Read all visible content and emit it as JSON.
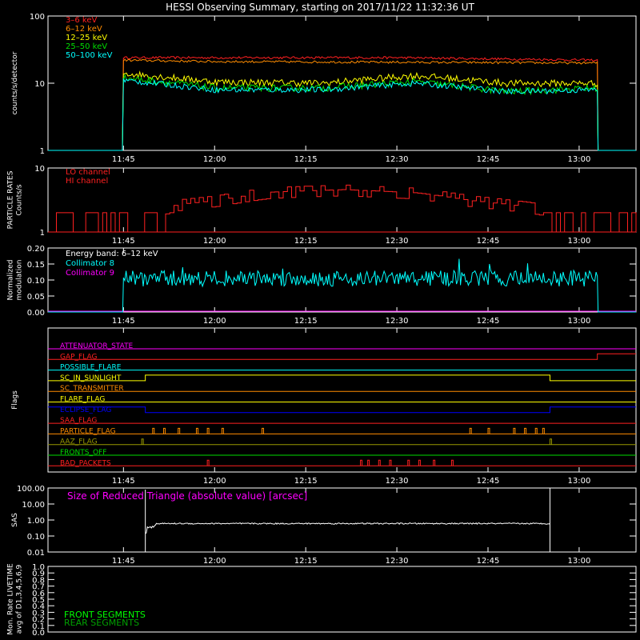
{
  "title": "HESSI Observing Summary, starting on 2017/11/22 11:32:36 UT",
  "colors": {
    "red": "#ff2020",
    "orange": "#ff8c00",
    "yellow": "#ffff00",
    "green": "#00dd00",
    "cyan": "#00ffff",
    "magenta": "#ff00ff",
    "blue": "#0000ff",
    "olive": "#999900",
    "white": "#ffffff",
    "dimgreen": "#00a000"
  },
  "chart_data": [
    {
      "id": "counts",
      "type": "line",
      "ylabel": "counts/s/detector",
      "yscale": "log",
      "ylim": [
        1,
        100
      ],
      "y_ticks": [
        {
          "v": 1,
          "l": "1"
        },
        {
          "v": 10,
          "l": "10"
        },
        {
          "v": 100,
          "l": "100"
        }
      ],
      "x_ticks": [
        "11:45",
        "12:00",
        "12:15",
        "12:30",
        "12:45",
        "13:00"
      ],
      "legend": [
        "3–6 keV",
        "6–12 keV",
        "12–25 keV",
        "25–50 keV",
        "50–100 keV"
      ],
      "series": [
        {
          "name": "3–6 keV",
          "color": "#ff2020",
          "base": [
            [
              11.75,
              24
            ],
            [
              12.5,
              24
            ],
            [
              13.05,
              22
            ]
          ],
          "noise": 0.04
        },
        {
          "name": "6–12 keV",
          "color": "#ff8c00",
          "base": [
            [
              11.75,
              22
            ],
            [
              12.0,
              21
            ],
            [
              13.05,
              20
            ]
          ],
          "noise": 0.04
        },
        {
          "name": "12–25 keV",
          "color": "#ffff00",
          "base": [
            [
              11.75,
              14
            ],
            [
              12.0,
              10.5
            ],
            [
              12.3,
              10
            ],
            [
              12.55,
              13
            ],
            [
              12.8,
              10
            ],
            [
              13.05,
              10
            ]
          ],
          "noise": 0.12
        },
        {
          "name": "25–50 keV",
          "color": "#00dd00",
          "base": [
            [
              11.75,
              12
            ],
            [
              12.0,
              8.5
            ],
            [
              12.3,
              8.5
            ],
            [
              12.55,
              10.5
            ],
            [
              12.8,
              7.5
            ],
            [
              13.05,
              8.5
            ]
          ],
          "noise": 0.12
        },
        {
          "name": "50–100 keV",
          "color": "#00ffff",
          "base": [
            [
              11.75,
              11
            ],
            [
              12.0,
              8
            ],
            [
              12.3,
              8
            ],
            [
              12.55,
              10
            ],
            [
              12.8,
              7.5
            ],
            [
              13.05,
              8
            ]
          ],
          "noise": 0.1
        }
      ]
    },
    {
      "id": "particles",
      "type": "line",
      "ylabel": "PARTICLE RATES Counts/s",
      "yscale": "log",
      "ylim": [
        1,
        10
      ],
      "y_ticks": [
        {
          "v": 1,
          "l": "1"
        },
        {
          "v": 10,
          "l": "10"
        }
      ],
      "x_ticks": [
        "11:45",
        "12:00",
        "12:15",
        "12:30",
        "12:45",
        "13:00"
      ],
      "legend": [
        "LO channel",
        "HI channel"
      ],
      "series": [
        {
          "name": "LO channel",
          "color": "#ff2020",
          "levels": [
            [
              11.56,
              1.0
            ],
            [
              11.58,
              2
            ],
            [
              11.62,
              1.0
            ],
            [
              11.7,
              2
            ],
            [
              11.73,
              1.0
            ],
            [
              11.82,
              2
            ],
            [
              11.9,
              2.7
            ],
            [
              12.0,
              3.1
            ],
            [
              12.15,
              4.2
            ],
            [
              12.35,
              4.6
            ],
            [
              12.55,
              4.1
            ],
            [
              12.7,
              3.1
            ],
            [
              12.85,
              2.5
            ],
            [
              13.0,
              1.8
            ],
            [
              13.05,
              2
            ],
            [
              13.15,
              1.6
            ]
          ]
        },
        {
          "name": "HI channel",
          "color": "#ff2020",
          "levels": [
            [
              11.56,
              1.0
            ],
            [
              13.15,
              1.0
            ]
          ]
        }
      ]
    },
    {
      "id": "modulation",
      "type": "line",
      "ylabel": "Normalized modulation",
      "ylim": [
        0,
        0.2
      ],
      "y_ticks": [
        {
          "v": 0,
          "l": "0.00"
        },
        {
          "v": 0.05,
          "l": "0.05"
        },
        {
          "v": 0.1,
          "l": "0.10"
        },
        {
          "v": 0.15,
          "l": "0.15"
        },
        {
          "v": 0.2,
          "l": "0.20"
        }
      ],
      "x_ticks": [
        "11:45",
        "12:00",
        "12:15",
        "12:30",
        "12:45",
        "13:00"
      ],
      "legend": [
        "Energy band: 6–12 keV",
        "Collimator 8",
        "Collimator 9"
      ],
      "series": [
        {
          "name": "Collimator 8",
          "color": "#00ffff",
          "mean": 0.105,
          "span": [
            11.75,
            13.05
          ]
        },
        {
          "name": "Collimator 9",
          "color": "#ff00ff",
          "mean": 0.0,
          "span": [
            11.56,
            13.15
          ]
        }
      ]
    },
    {
      "id": "flags",
      "type": "line",
      "ylabel": "Flags",
      "x_ticks": [
        "11:45",
        "12:00",
        "12:15",
        "12:30",
        "12:45",
        "13:00"
      ],
      "rows": [
        {
          "label": "ATTENUATOR_STATE",
          "color": "#ff00ff",
          "steps": []
        },
        {
          "label": "GAP_FLAG",
          "color": "#ff2020",
          "steps": [
            [
              13.05,
              1
            ]
          ]
        },
        {
          "label": "POSSIBLE_FLARE",
          "color": "#00ffff",
          "steps": []
        },
        {
          "label": "SC_IN_SUNLIGHT",
          "color": "#ffff00",
          "steps": [
            [
              11.81,
              1
            ],
            [
              12.92,
              0
            ]
          ]
        },
        {
          "label": "SC_TRANSMITTER",
          "color": "#ff8c00",
          "steps": []
        },
        {
          "label": "FLARE_FLAG",
          "color": "#ffff00",
          "steps": []
        },
        {
          "label": "ECLIPSE_FLAG",
          "color": "#0000ff",
          "initial": 1,
          "steps": [
            [
              11.81,
              0
            ],
            [
              12.92,
              1
            ]
          ]
        },
        {
          "label": "SAA_FLAG",
          "color": "#ff2020",
          "steps": []
        },
        {
          "label": "PARTICLE_FLAG",
          "color": "#ff8c00",
          "spikes": [
            11.83,
            11.86,
            11.9,
            11.95,
            11.98,
            12.02,
            12.13,
            12.7,
            12.75,
            12.82,
            12.85,
            12.88,
            12.9
          ]
        },
        {
          "label": "AAZ_FLAG",
          "color": "#999900",
          "spikes": [
            11.8,
            12.92
          ]
        },
        {
          "label": "FRONTS_OFF",
          "color": "#00dd00",
          "steps": []
        },
        {
          "label": "BAD_PACKETS",
          "color": "#ff2020",
          "spikes": [
            11.98,
            12.4,
            12.42,
            12.45,
            12.48,
            12.53,
            12.56,
            12.6,
            12.65
          ]
        }
      ]
    },
    {
      "id": "sas",
      "type": "line",
      "ylabel": "SAS",
      "yscale": "log",
      "ylim": [
        0.01,
        100
      ],
      "y_ticks": [
        {
          "v": 0.01,
          "l": "0.01"
        },
        {
          "v": 0.1,
          "l": "0.10"
        },
        {
          "v": 1,
          "l": "1.00"
        },
        {
          "v": 10,
          "l": "10.00"
        },
        {
          "v": 100,
          "l": "100.00"
        }
      ],
      "x_ticks": [
        "11:45",
        "12:00",
        "12:15",
        "12:30",
        "12:45",
        "13:00"
      ],
      "annotation": "Size of Reduced Triangle (absolute value) [arcsec]",
      "series": [
        {
          "name": "SAS",
          "color": "#ffffff",
          "span": [
            11.81,
            12.92
          ],
          "level": 0.6
        }
      ]
    },
    {
      "id": "livetime",
      "type": "line",
      "ylabel": "Mon. Rate LIVETIME avg of D1,3,4,5,6,9",
      "ylim": [
        0,
        1
      ],
      "y_ticks": [
        {
          "v": 0,
          "l": "0.0"
        },
        {
          "v": 0.1,
          "l": "0.1"
        },
        {
          "v": 0.2,
          "l": "0.2"
        },
        {
          "v": 0.3,
          "l": "0.3"
        },
        {
          "v": 0.4,
          "l": "0.4"
        },
        {
          "v": 0.5,
          "l": "0.5"
        },
        {
          "v": 0.6,
          "l": "0.6"
        },
        {
          "v": 0.7,
          "l": "0.7"
        },
        {
          "v": 0.8,
          "l": "0.8"
        },
        {
          "v": 0.9,
          "l": "0.9"
        },
        {
          "v": 1.0,
          "l": "1.0"
        }
      ],
      "legend": [
        "FRONT SEGMENTS",
        "REAR SEGMENTS"
      ],
      "legend_colors": [
        "#00ff00",
        "#00a000"
      ]
    }
  ]
}
